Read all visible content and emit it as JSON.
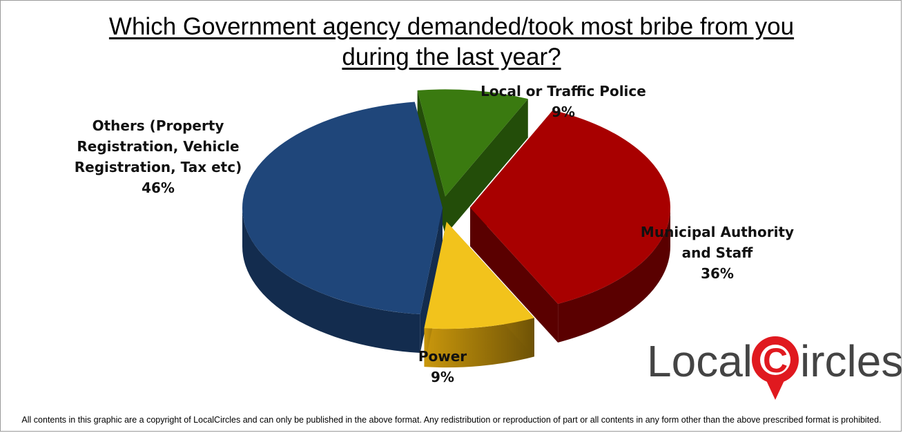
{
  "chart_data": {
    "type": "pie",
    "title": "Which Government agency demanded/took most bribe from you during the last year?",
    "title_lines": [
      "Which Government agency demanded/took most bribe from you",
      "during the last year?"
    ],
    "slices": [
      {
        "label": "Local or Traffic Police",
        "label_lines": [
          "Local or Traffic Police"
        ],
        "value": 9,
        "pct_label": "9%",
        "color": "#3a7a10",
        "side_color": "#234d09",
        "exploded": true
      },
      {
        "label": "Municipal Authority and Staff",
        "label_lines": [
          "Municipal Authority",
          "and Staff"
        ],
        "value": 36,
        "pct_label": "36%",
        "color": "#a80000",
        "side_color": "#5a0000",
        "exploded": true
      },
      {
        "label": "Power",
        "label_lines": [
          "Power"
        ],
        "value": 9,
        "pct_label": "9%",
        "color": "#f2c31c",
        "side_color": "#9a7208",
        "exploded": true
      },
      {
        "label": "Others (Property Registration, Vehicle Registration, Tax etc)",
        "label_lines": [
          "Others (Property",
          "Registration, Vehicle",
          "Registration, Tax etc)"
        ],
        "value": 46,
        "pct_label": "46%",
        "color": "#1f467a",
        "side_color": "#132c4e",
        "exploded": false
      }
    ],
    "style": "3d-exploded-pie",
    "legend": "none"
  },
  "logo": {
    "left_text": "Local",
    "letter": "C",
    "right_text": "ircles",
    "text_color": "#444444",
    "accent_color": "#e0191f"
  },
  "footer": "All contents in this graphic are a copyright of LocalCircles and can only be published in the above format. Any redistribution or reproduction of part or all contents in any form other than the above prescribed format is prohibited."
}
